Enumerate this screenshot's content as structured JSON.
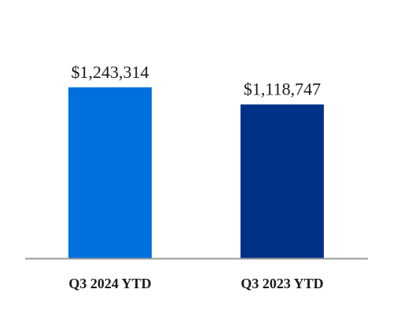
{
  "chart_data": {
    "type": "bar",
    "categories": [
      "Q3 2024 YTD",
      "Q3 2023 YTD"
    ],
    "values": [
      1243314,
      1118747
    ],
    "data_labels": [
      "$1,243,314",
      "$1,118,747"
    ],
    "bar_colors": [
      "#0070e0",
      "#003087"
    ],
    "axis_color": "#999999",
    "ylim": [
      0,
      1500000
    ],
    "grid": false,
    "legend": "none",
    "title": "",
    "xlabel": "",
    "ylabel": ""
  }
}
